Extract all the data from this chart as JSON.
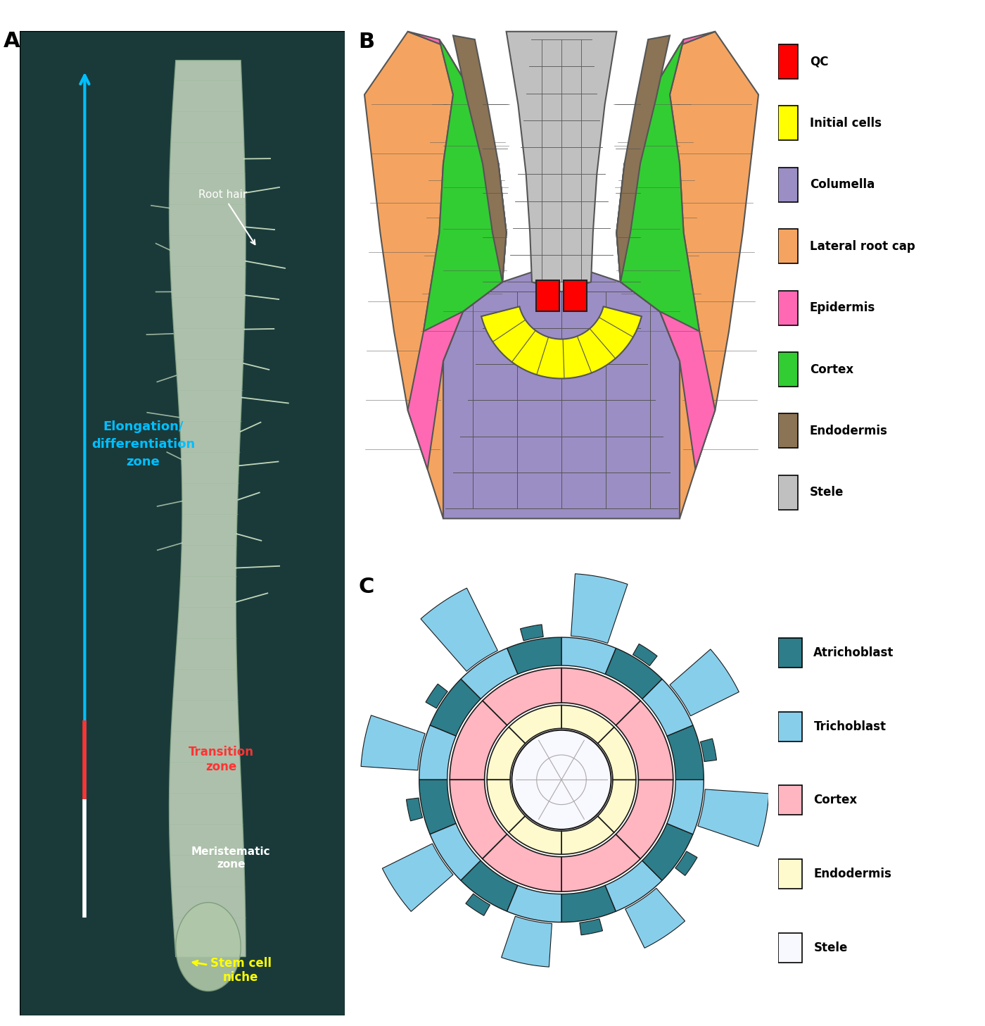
{
  "panel_A_label": "A",
  "panel_B_label": "B",
  "panel_C_label": "C",
  "root_hair_label": "Root hair",
  "elongation_label": "Elongation/\ndifferentiation\nzone",
  "transition_label": "Transition\nzone",
  "meristematic_label": "Meristematic\nzone",
  "stem_cell_label": "Stem cell\nniche",
  "panel_B_legend": {
    "QC": "#FF0000",
    "Initial cells": "#FFFF00",
    "Columella": "#9B8EC4",
    "Lateral root cap": "#F4A460",
    "Epidermis": "#FF69B4",
    "Cortex": "#32CD32",
    "Endodermis": "#8B7355",
    "Stele": "#C0C0C0"
  },
  "panel_C_legend": {
    "Atrichoblast": "#2E7D8A",
    "Trichoblast": "#87CEEB",
    "Cortex": "#FFB6C1",
    "Endodermis": "#FFFACD",
    "Stele": "#F8F8FF"
  },
  "background_color": "#FFFFFF",
  "micro_bg": "#1a3a3a",
  "micro_root_color": "#c8d8c0",
  "micro_root_edge": "#8aab8a",
  "arrow_blue": "#00BFFF",
  "arrow_red": "#FF3333",
  "label_cyan": "#00BFFF",
  "label_red": "#FF3333",
  "label_yellow": "#FFFF00",
  "label_white": "#FFFFFF"
}
